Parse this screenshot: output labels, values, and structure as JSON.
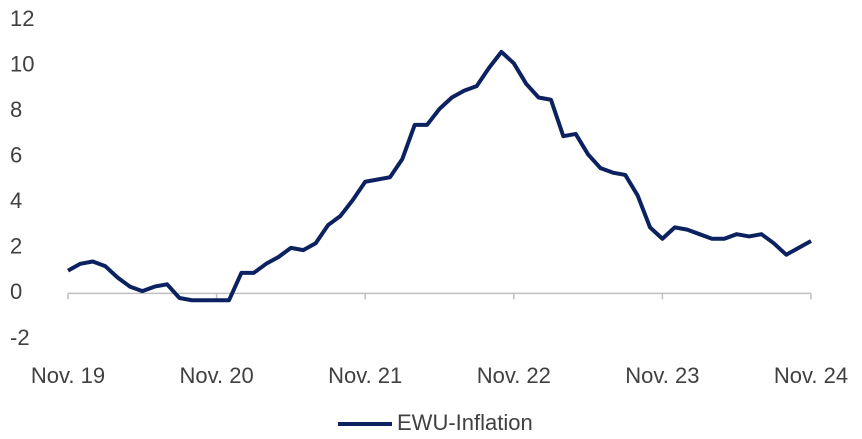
{
  "chart_data": {
    "type": "line",
    "categories": [
      "Nov. 19",
      null,
      null,
      null,
      null,
      null,
      null,
      null,
      null,
      null,
      null,
      null,
      "Nov. 20",
      null,
      null,
      null,
      null,
      null,
      null,
      null,
      null,
      null,
      null,
      null,
      "Nov. 21",
      null,
      null,
      null,
      null,
      null,
      null,
      null,
      null,
      null,
      null,
      null,
      "Nov. 22",
      null,
      null,
      null,
      null,
      null,
      null,
      null,
      null,
      null,
      null,
      null,
      "Nov. 23",
      null,
      null,
      null,
      null,
      null,
      null,
      null,
      null,
      null,
      null,
      null,
      "Nov. 24"
    ],
    "series": [
      {
        "name": "EWU-Inflation",
        "color": "#0c2260",
        "values": [
          1.0,
          1.3,
          1.4,
          1.2,
          0.7,
          0.3,
          0.1,
          0.3,
          0.4,
          -0.2,
          -0.3,
          -0.3,
          -0.3,
          -0.3,
          0.9,
          0.9,
          1.3,
          1.6,
          2.0,
          1.9,
          2.2,
          3.0,
          3.4,
          4.1,
          4.9,
          5.0,
          5.1,
          5.9,
          7.4,
          7.4,
          8.1,
          8.6,
          8.9,
          9.1,
          9.9,
          10.6,
          10.1,
          9.2,
          8.6,
          8.5,
          6.9,
          7.0,
          6.1,
          5.5,
          5.3,
          5.2,
          4.3,
          2.9,
          2.4,
          2.9,
          2.8,
          2.6,
          2.4,
          2.4,
          2.6,
          2.5,
          2.6,
          2.2,
          1.7,
          2.0,
          2.3
        ]
      }
    ],
    "ylim": [
      -2,
      12
    ],
    "yticks": [
      -2,
      0,
      2,
      4,
      6,
      8,
      10,
      12
    ],
    "grid": false,
    "legend": "bottom"
  }
}
